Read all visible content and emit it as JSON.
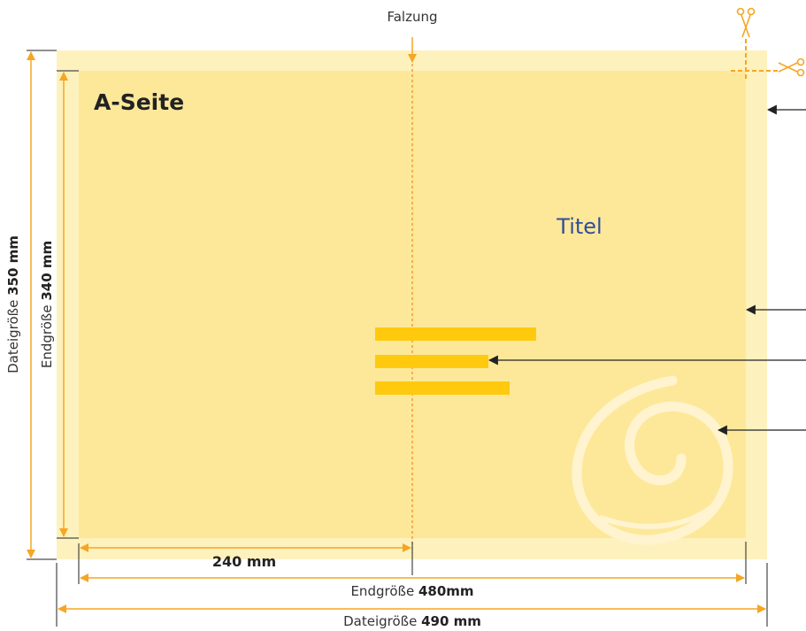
{
  "fold": {
    "label": "Falzung"
  },
  "page": {
    "label": "A-Seite",
    "title": "Titel"
  },
  "dimensions": {
    "half_width": "240 mm",
    "final_width_prefix": "Endgröße ",
    "final_width_value": "480mm",
    "file_width_prefix": "Dateigröße ",
    "file_width_value": "490 mm",
    "final_height_prefix": "Endgröße ",
    "final_height_value": "340 mm",
    "file_height_prefix": "Dateigröße ",
    "file_height_value": "350 mm"
  },
  "colors": {
    "bleed": "#fdf1bd",
    "page": "#fde89a",
    "text_lines": "#ffc90e",
    "dimension": "#f5a623",
    "fold_line": "#f08a1c",
    "swirl": "#fff4cf",
    "pointer": "#222222"
  },
  "icons": [
    "scissors-icon-top",
    "scissors-icon-side"
  ]
}
